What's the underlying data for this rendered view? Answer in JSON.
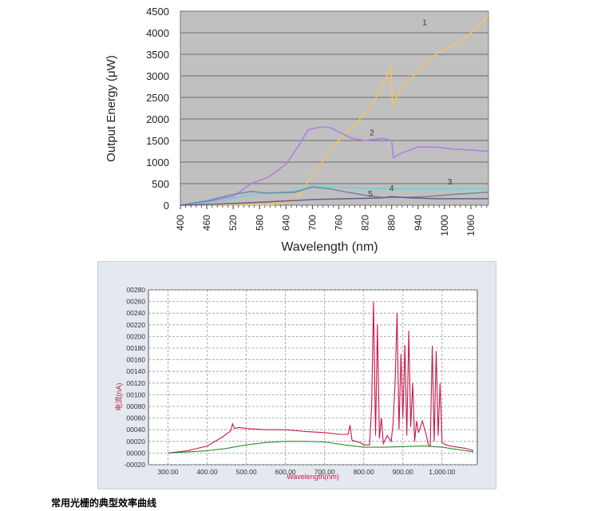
{
  "caption": "常用光栅的典型效率曲线",
  "chart_data": [
    {
      "type": "line",
      "xlabel": "Wavelength (nm)",
      "ylabel": "Output Energy (μW)",
      "xlim": [
        400,
        1100
      ],
      "ylim": [
        0,
        4500
      ],
      "x_ticks": [
        "400",
        "460",
        "520",
        "580",
        "640",
        "700",
        "760",
        "820",
        "880",
        "940",
        "1000",
        "1060"
      ],
      "y_ticks": [
        "0",
        "500",
        "1000",
        "1500",
        "2000",
        "2500",
        "3000",
        "3500",
        "4000",
        "4500"
      ],
      "grid": "horizontal",
      "plot_background": "#c0c0c0",
      "series": [
        {
          "name": "1",
          "color": "#f2c65a",
          "x": [
            400,
            600,
            640,
            660,
            680,
            700,
            730,
            760,
            800,
            840,
            870,
            878,
            882,
            900,
            940,
            980,
            1020,
            1050,
            1080,
            1100
          ],
          "y": [
            0,
            0,
            50,
            100,
            400,
            700,
            1100,
            1500,
            1900,
            2400,
            3000,
            3200,
            2300,
            2700,
            3100,
            3500,
            3700,
            3900,
            4200,
            4400
          ]
        },
        {
          "name": "2",
          "color": "#b07ce6",
          "x": [
            400,
            440,
            480,
            520,
            560,
            600,
            640,
            670,
            690,
            720,
            740,
            760,
            790,
            820,
            860,
            880,
            884,
            900,
            940,
            980,
            1020,
            1060,
            1100
          ],
          "y": [
            0,
            50,
            120,
            200,
            500,
            650,
            950,
            1400,
            1750,
            1820,
            1800,
            1700,
            1550,
            1500,
            1550,
            1500,
            1100,
            1200,
            1350,
            1350,
            1300,
            1280,
            1250
          ]
        },
        {
          "name": "3",
          "color": "#6fcfe0",
          "x": [
            400,
            500,
            560,
            620,
            660,
            680,
            700,
            740,
            800,
            860,
            920,
            1000,
            1100
          ],
          "y": [
            0,
            100,
            250,
            300,
            330,
            400,
            450,
            430,
            400,
            380,
            380,
            380,
            380
          ]
        },
        {
          "name": "4",
          "color": "#6a8aa0",
          "x": [
            400,
            460,
            520,
            560,
            600,
            660,
            700,
            740,
            780,
            820,
            860,
            900,
            960,
            1020,
            1100
          ],
          "y": [
            0,
            100,
            250,
            320,
            280,
            300,
            420,
            380,
            300,
            230,
            180,
            180,
            200,
            250,
            300
          ]
        },
        {
          "name": "5",
          "color": "#6b5a8a",
          "x": [
            400,
            500,
            600,
            660,
            700,
            740,
            780,
            820,
            860,
            880,
            920,
            980,
            1040,
            1100
          ],
          "y": [
            0,
            30,
            80,
            110,
            130,
            140,
            150,
            160,
            170,
            200,
            170,
            150,
            150,
            150
          ]
        }
      ]
    },
    {
      "type": "line",
      "xlabel": "Wavelength(nm)",
      "ylabel": "电流(nA)",
      "xlim": [
        250,
        1090
      ],
      "ylim": [
        -20,
        280
      ],
      "x_ticks": [
        "300.00",
        "400.00",
        "500.00",
        "600.00",
        "700.00",
        "800.00",
        "900.00",
        "1,000.00"
      ],
      "y_ticks": [
        "-00020",
        "00000",
        "00020",
        "00040",
        "00060",
        "00080",
        "00100",
        "00120",
        "00140",
        "00160",
        "00180",
        "00200",
        "00220",
        "00240",
        "00260",
        "00280"
      ],
      "grid": "dashed",
      "series": [
        {
          "color": "#c8174a",
          "x": [
            300,
            350,
            400,
            440,
            460,
            465,
            470,
            480,
            500,
            550,
            600,
            650,
            700,
            740,
            760,
            765,
            770,
            790,
            800,
            815,
            820,
            825,
            830,
            835,
            840,
            845,
            850,
            860,
            870,
            875,
            880,
            885,
            890,
            895,
            900,
            905,
            910,
            915,
            920,
            925,
            930,
            935,
            940,
            950,
            960,
            965,
            970,
            975,
            980,
            985,
            990,
            995,
            1000,
            1010,
            1020,
            1040,
            1060,
            1080
          ],
          "y": [
            0,
            4,
            12,
            28,
            38,
            50,
            42,
            44,
            42,
            40,
            40,
            37,
            35,
            32,
            32,
            48,
            22,
            18,
            14,
            14,
            80,
            260,
            30,
            220,
            25,
            60,
            16,
            30,
            20,
            50,
            120,
            240,
            40,
            170,
            60,
            185,
            30,
            210,
            45,
            120,
            20,
            55,
            35,
            55,
            30,
            14,
            12,
            184,
            20,
            175,
            30,
            120,
            18,
            14,
            12,
            10,
            8,
            4
          ]
        },
        {
          "color": "#2e8b2e",
          "x": [
            300,
            350,
            400,
            450,
            500,
            550,
            600,
            650,
            700,
            750,
            800,
            850,
            900,
            950,
            1000,
            1050,
            1080
          ],
          "y": [
            0,
            2,
            4,
            8,
            14,
            18,
            20,
            20,
            19,
            14,
            10,
            10,
            11,
            12,
            10,
            5,
            2
          ]
        }
      ]
    }
  ]
}
